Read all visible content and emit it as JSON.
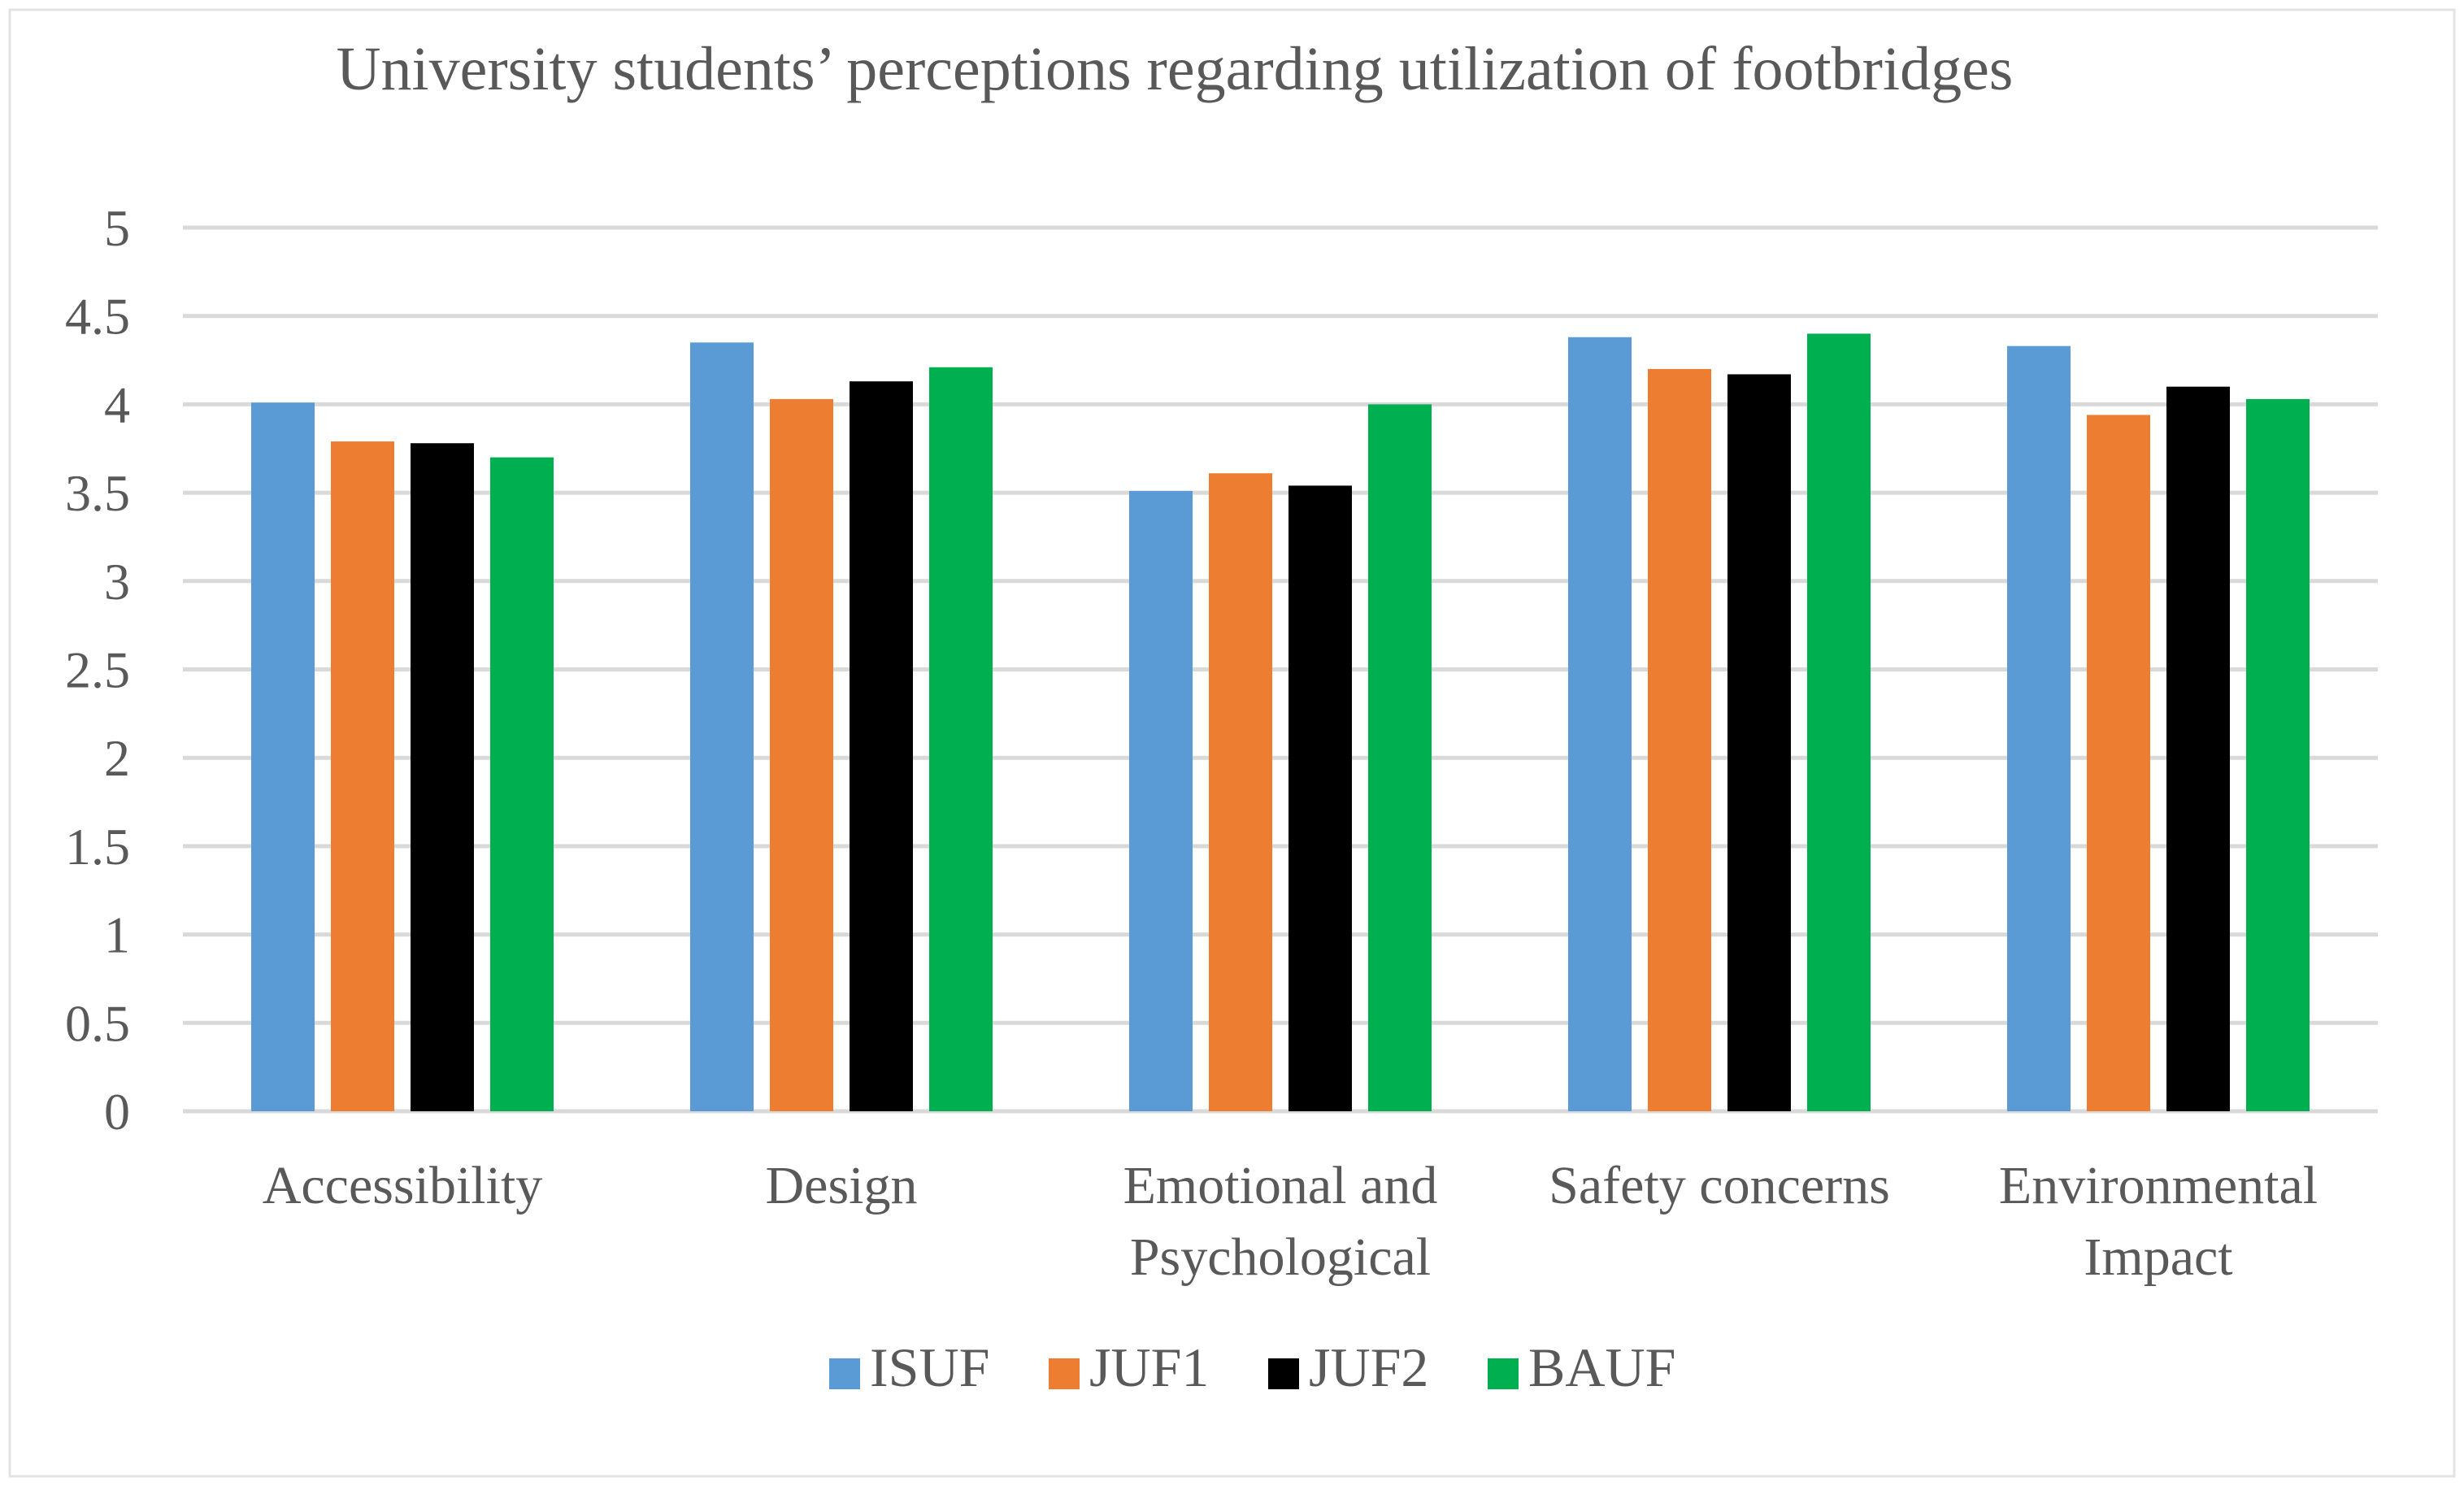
{
  "chart_data": {
    "type": "bar",
    "title": "University students’ perceptions regarding utilization of footbridges",
    "xlabel": "",
    "ylabel": "",
    "ylim": [
      0,
      5
    ],
    "yticks": [
      "0",
      "0.5",
      "1",
      "1.5",
      "2",
      "2.5",
      "3",
      "3.5",
      "4",
      "4.5",
      "5"
    ],
    "ytick_values": [
      0,
      0.5,
      1,
      1.5,
      2,
      2.5,
      3,
      3.5,
      4,
      4.5,
      5
    ],
    "grid": true,
    "legend_position": "bottom",
    "categories": [
      [
        "Accessibility"
      ],
      [
        "Design"
      ],
      [
        "Emotional and",
        "Psychological"
      ],
      [
        "Safety concerns"
      ],
      [
        "Environmental",
        "Impact"
      ]
    ],
    "series": [
      {
        "name": "ISUF",
        "color": "#5B9BD5",
        "values": [
          4.01,
          4.35,
          3.51,
          4.38,
          4.33
        ]
      },
      {
        "name": "JUF1",
        "color": "#ED7D31",
        "values": [
          3.79,
          4.03,
          3.61,
          4.2,
          3.94
        ]
      },
      {
        "name": "JUF2",
        "color": "#000000",
        "values": [
          3.78,
          4.13,
          3.54,
          4.17,
          4.1
        ]
      },
      {
        "name": "BAUF",
        "color": "#00B050",
        "values": [
          3.7,
          4.21,
          4.0,
          4.4,
          4.03
        ]
      }
    ]
  }
}
